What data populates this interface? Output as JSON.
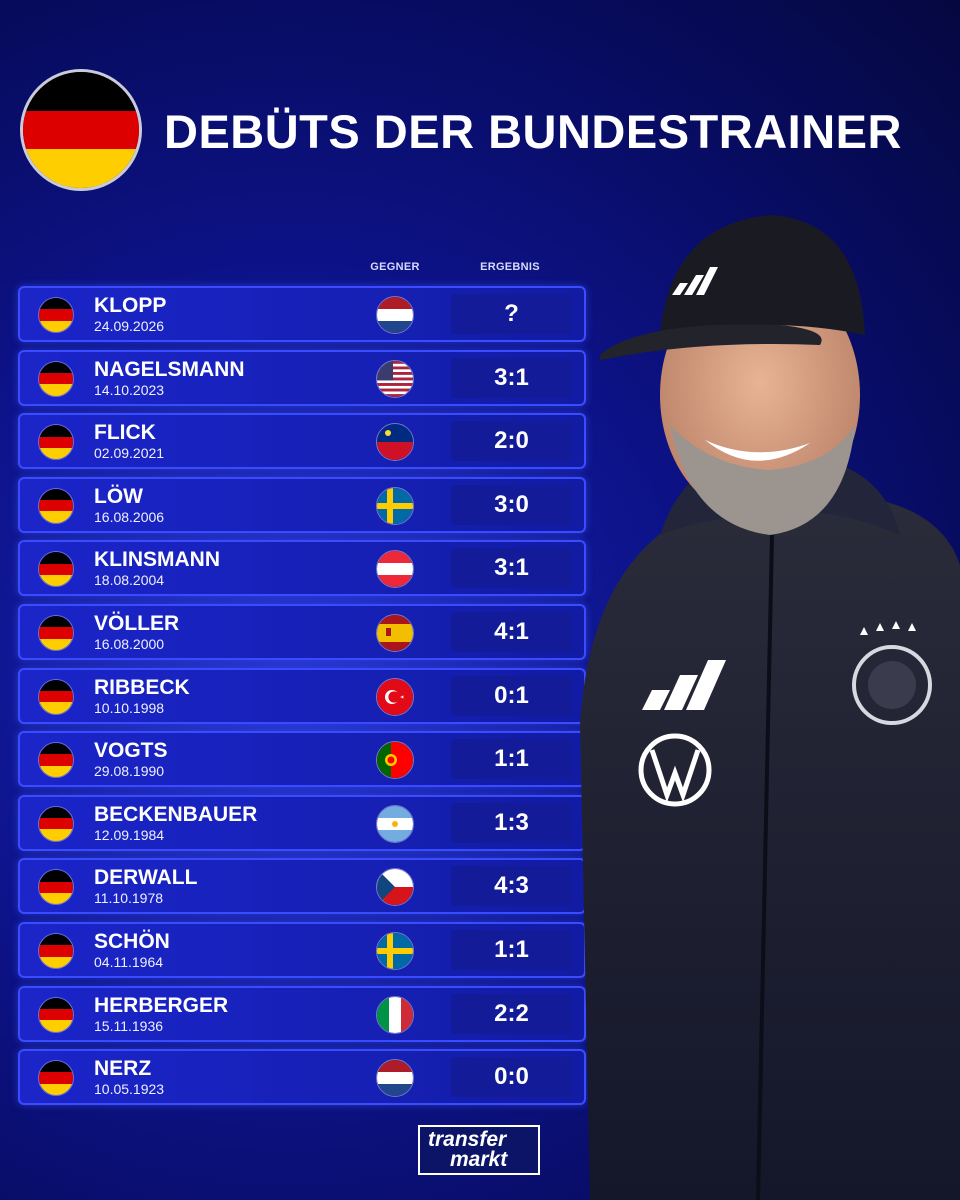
{
  "title": "DEBÜTS DER BUNDESTRAINER",
  "columns": {
    "opponent": "GEGNER",
    "result": "ERGEBNIS"
  },
  "colors": {
    "germany": [
      "#000000",
      "#dd0000",
      "#ffce00"
    ],
    "row_bg": "#1620b5",
    "row_border": "#3b4cff"
  },
  "rows": [
    {
      "name": "KLOPP",
      "date": "24.09.2026",
      "opponent": "netherlands",
      "result": "?"
    },
    {
      "name": "NAGELSMANN",
      "date": "14.10.2023",
      "opponent": "usa",
      "result": "3:1"
    },
    {
      "name": "FLICK",
      "date": "02.09.2021",
      "opponent": "liechtenstein",
      "result": "2:0"
    },
    {
      "name": "LÖW",
      "date": "16.08.2006",
      "opponent": "sweden",
      "result": "3:0"
    },
    {
      "name": "KLINSMANN",
      "date": "18.08.2004",
      "opponent": "austria",
      "result": "3:1"
    },
    {
      "name": "VÖLLER",
      "date": "16.08.2000",
      "opponent": "spain",
      "result": "4:1"
    },
    {
      "name": "RIBBECK",
      "date": "10.10.1998",
      "opponent": "turkey",
      "result": "0:1"
    },
    {
      "name": "VOGTS",
      "date": "29.08.1990",
      "opponent": "portugal",
      "result": "1:1"
    },
    {
      "name": "BECKENBAUER",
      "date": "12.09.1984",
      "opponent": "argentina",
      "result": "1:3"
    },
    {
      "name": "DERWALL",
      "date": "11.10.1978",
      "opponent": "czechoslovakia",
      "result": "4:3"
    },
    {
      "name": "SCHÖN",
      "date": "04.11.1964",
      "opponent": "sweden",
      "result": "1:1"
    },
    {
      "name": "HERBERGER",
      "date": "15.11.1936",
      "opponent": "italy",
      "result": "2:2"
    },
    {
      "name": "NERZ",
      "date": "10.05.1923",
      "opponent": "netherlands",
      "result": "0:0"
    }
  ],
  "logo": {
    "line1": "transfer",
    "line2": "markt"
  }
}
